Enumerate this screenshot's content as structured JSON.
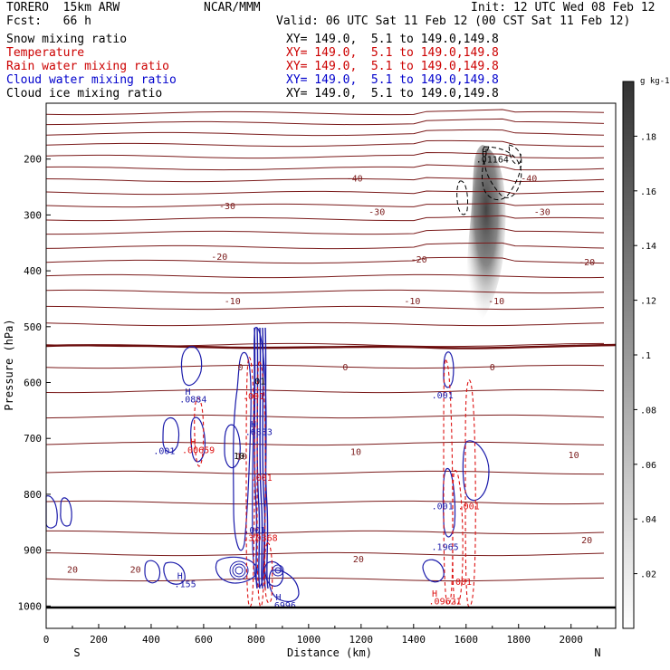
{
  "header": {
    "model": "TORERO  15km ARW",
    "org": "NCAR/MMM",
    "init": "Init: 12 UTC Wed 08 Feb 12",
    "fcst": "Fcst:   66 h",
    "valid": "Valid: 06 UTC Sat 11 Feb 12 (00 CST Sat 11 Feb 12)"
  },
  "fields": [
    {
      "label": "Snow mixing ratio",
      "xy": "",
      "color": "#000000"
    },
    {
      "label": "Temperature",
      "xy": "XY= 149.0,  5.1 to 149.0,149.8",
      "color": "#cc0000"
    },
    {
      "label": "Rain water mixing ratio",
      "xy": "XY= 149.0,  5.1 to 149.0,149.8",
      "color": "#cc0000"
    },
    {
      "label": "Cloud water mixing ratio",
      "xy": "XY= 149.0,  5.1 to 149.0,149.8",
      "color": "#0000cc"
    },
    {
      "label": "Cloud ice mixing ratio",
      "xy": "XY= 149.0,  5.1 to 149.0,149.8",
      "color": "#000000"
    }
  ],
  "first_xy": "XY= 149.0,  5.1 to 149.0,149.8",
  "chart_data": {
    "type": "cross-section contour",
    "xlabel": "Distance (km)",
    "ylabel": "Pressure (hPa)",
    "xlim": [
      0,
      2170
    ],
    "ylim": [
      1040,
      100
    ],
    "x_ticks": [
      0,
      200,
      400,
      600,
      800,
      1000,
      1200,
      1400,
      1600,
      1800,
      2000
    ],
    "y_ticks": [
      200,
      300,
      400,
      500,
      600,
      700,
      800,
      900,
      1000
    ],
    "x_end_labels": {
      "left": "S",
      "right": "N"
    },
    "colorbar": {
      "unit": "g kg-1",
      "ticks": [
        ".02",
        ".04",
        ".06",
        ".08",
        ".1",
        ".12",
        ".14",
        ".16",
        ".18"
      ],
      "min": 0,
      "max": 0.2
    },
    "temperature_labels": [
      {
        "text": "-40",
        "x": 1175,
        "p": 240
      },
      {
        "text": "-40",
        "x": 1840,
        "p": 240
      },
      {
        "text": "-30",
        "x": 690,
        "p": 290
      },
      {
        "text": "-30",
        "x": 1260,
        "p": 300
      },
      {
        "text": "-30",
        "x": 1890,
        "p": 300
      },
      {
        "text": "-20",
        "x": 660,
        "p": 380
      },
      {
        "text": "-20",
        "x": 1420,
        "p": 385
      },
      {
        "text": "-20",
        "x": 2060,
        "p": 390
      },
      {
        "text": "-10",
        "x": 710,
        "p": 460
      },
      {
        "text": "-10",
        "x": 1395,
        "p": 460
      },
      {
        "text": "-10",
        "x": 1715,
        "p": 460
      },
      {
        "text": "0",
        "x": 740,
        "p": 578
      },
      {
        "text": "0",
        "x": 1140,
        "p": 578
      },
      {
        "text": "0",
        "x": 1700,
        "p": 578
      },
      {
        "text": "10",
        "x": 745,
        "p": 738
      },
      {
        "text": "10",
        "x": 1180,
        "p": 730
      },
      {
        "text": "10",
        "x": 2010,
        "p": 735
      },
      {
        "text": "20",
        "x": 100,
        "p": 940
      },
      {
        "text": "20",
        "x": 340,
        "p": 940
      },
      {
        "text": "20",
        "x": 1190,
        "p": 922
      },
      {
        "text": "20",
        "x": 2060,
        "p": 888
      }
    ],
    "cloud_water_labels": [
      {
        "text": "H",
        "x": 540,
        "p": 622
      },
      {
        "text": ".0884",
        "x": 560,
        "p": 636
      },
      {
        "text": ".001",
        "x": 450,
        "p": 728
      },
      {
        "text": "H",
        "x": 790,
        "p": 680
      },
      {
        "text": ".6833",
        "x": 810,
        "p": 694
      },
      {
        "text": ".001",
        "x": 795,
        "p": 870
      },
      {
        "text": ".001",
        "x": 1510,
        "p": 628
      },
      {
        "text": ".001",
        "x": 1510,
        "p": 827
      },
      {
        "text": ".1965",
        "x": 1520,
        "p": 900
      },
      {
        "text": "H",
        "x": 510,
        "p": 952
      },
      {
        "text": ".155",
        "x": 530,
        "p": 966
      },
      {
        "text": "H",
        "x": 885,
        "p": 990
      },
      {
        "text": ".6996",
        "x": 900,
        "p": 1004
      }
    ],
    "rain_labels": [
      {
        "text": "H",
        "x": 560,
        "p": 712
      },
      {
        "text": ".00659",
        "x": 580,
        "p": 726
      },
      {
        "text": ".001",
        "x": 790,
        "p": 630
      },
      {
        "text": ".001",
        "x": 820,
        "p": 776
      },
      {
        "text": ".37",
        "x": 780,
        "p": 884
      },
      {
        "text": ".0368",
        "x": 830,
        "p": 884
      },
      {
        "text": "H",
        "x": 1480,
        "p": 983
      },
      {
        "text": ".09621",
        "x": 1520,
        "p": 997
      },
      {
        "text": ".001",
        "x": 1610,
        "p": 827
      },
      {
        "text": ".001",
        "x": 1580,
        "p": 962
      }
    ],
    "ice_labels": [
      {
        "text": "H",
        "x": 1670,
        "p": 193
      },
      {
        "text": ".01164",
        "x": 1700,
        "p": 206
      }
    ],
    "other_labels": [
      {
        "text": "10",
        "x": 735,
        "p": 737
      },
      {
        "text": "01",
        "x": 815,
        "p": 603
      }
    ]
  }
}
